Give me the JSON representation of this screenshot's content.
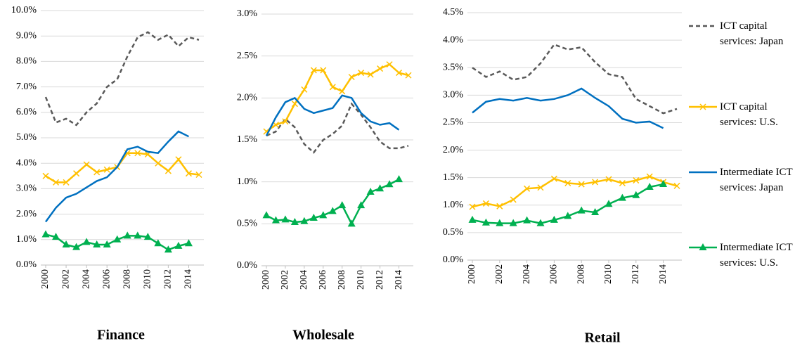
{
  "chart_data": [
    {
      "type": "line",
      "title": "Finance",
      "x": [
        2000,
        2001,
        2002,
        2003,
        2004,
        2005,
        2006,
        2007,
        2008,
        2009,
        2010,
        2011,
        2012,
        2013,
        2014,
        2015
      ],
      "xlim": [
        2000,
        2015
      ],
      "xticks": [
        2000,
        2002,
        2004,
        2006,
        2008,
        2010,
        2012,
        2014
      ],
      "ylim": [
        0,
        10
      ],
      "yticks": [
        {
          "value": 0,
          "label": "0.0%"
        },
        {
          "value": 1,
          "label": "1.0%"
        },
        {
          "value": 2,
          "label": "2.0%"
        },
        {
          "value": 3,
          "label": "3.0%"
        },
        {
          "value": 4,
          "label": "4.0%"
        },
        {
          "value": 5,
          "label": "5.0%"
        },
        {
          "value": 6,
          "label": "6.0%"
        },
        {
          "value": 7,
          "label": "7.0%"
        },
        {
          "value": 8,
          "label": "8.0%"
        },
        {
          "value": 9,
          "label": "9.0%"
        },
        {
          "value": 10,
          "label": "10.0%"
        }
      ],
      "grid": true,
      "series": [
        {
          "color": "#595959",
          "style": "dashed",
          "marker": "none",
          "values": [
            6.6,
            5.6,
            5.75,
            5.5,
            6.0,
            6.35,
            7.0,
            7.3,
            8.2,
            8.95,
            9.15,
            8.85,
            9.05,
            8.6,
            8.95,
            8.85
          ]
        },
        {
          "color": "#ffc000",
          "style": "solid",
          "marker": "x",
          "values": [
            3.5,
            3.25,
            3.25,
            3.6,
            3.95,
            3.65,
            3.75,
            3.85,
            4.4,
            4.4,
            4.35,
            4.0,
            3.7,
            4.15,
            3.6,
            3.55
          ]
        },
        {
          "color": "#0070c0",
          "style": "solid",
          "marker": "none",
          "values": [
            1.7,
            2.25,
            2.65,
            2.8,
            3.05,
            3.3,
            3.45,
            3.85,
            4.55,
            4.65,
            4.45,
            4.4,
            4.85,
            5.25,
            5.05,
            null
          ]
        },
        {
          "color": "#00b050",
          "style": "solid",
          "marker": "triangle",
          "values": [
            1.2,
            1.1,
            0.8,
            0.7,
            0.9,
            0.8,
            0.8,
            1.0,
            1.15,
            1.15,
            1.1,
            0.85,
            0.6,
            0.75,
            0.85,
            null
          ]
        }
      ]
    },
    {
      "type": "line",
      "title": "Wholesale",
      "x": [
        2000,
        2001,
        2002,
        2003,
        2004,
        2005,
        2006,
        2007,
        2008,
        2009,
        2010,
        2011,
        2012,
        2013,
        2014,
        2015
      ],
      "xlim": [
        2000,
        2015
      ],
      "xticks": [
        2000,
        2002,
        2004,
        2006,
        2008,
        2010,
        2012,
        2014
      ],
      "ylim": [
        0,
        3
      ],
      "yticks": [
        {
          "value": 0,
          "label": "0.0%"
        },
        {
          "value": 0.5,
          "label": "0.5%"
        },
        {
          "value": 1,
          "label": "1.0%"
        },
        {
          "value": 1.5,
          "label": "1.5%"
        },
        {
          "value": 2,
          "label": "2.0%"
        },
        {
          "value": 2.5,
          "label": "2.5%"
        },
        {
          "value": 3,
          "label": "3.0%"
        }
      ],
      "grid": true,
      "series": [
        {
          "color": "#595959",
          "style": "dashed",
          "marker": "none",
          "values": [
            1.55,
            1.6,
            1.75,
            1.65,
            1.45,
            1.35,
            1.5,
            1.57,
            1.67,
            1.93,
            1.8,
            1.65,
            1.48,
            1.4,
            1.4,
            1.43
          ]
        },
        {
          "color": "#ffc000",
          "style": "solid",
          "marker": "x",
          "values": [
            1.6,
            1.68,
            1.72,
            1.93,
            2.1,
            2.33,
            2.33,
            2.13,
            2.08,
            2.25,
            2.3,
            2.28,
            2.35,
            2.4,
            2.3,
            2.27
          ]
        },
        {
          "color": "#0070c0",
          "style": "solid",
          "marker": "none",
          "values": [
            1.55,
            1.77,
            1.95,
            2.0,
            1.87,
            1.82,
            1.85,
            1.88,
            2.03,
            2.0,
            1.82,
            1.72,
            1.68,
            1.7,
            1.62,
            null
          ]
        },
        {
          "color": "#00b050",
          "style": "solid",
          "marker": "triangle",
          "values": [
            0.6,
            0.54,
            0.55,
            0.52,
            0.53,
            0.57,
            0.6,
            0.65,
            0.72,
            0.5,
            0.72,
            0.88,
            0.92,
            0.97,
            1.03,
            null
          ]
        }
      ]
    },
    {
      "type": "line",
      "title": "Retail",
      "x": [
        2000,
        2001,
        2002,
        2003,
        2004,
        2005,
        2006,
        2007,
        2008,
        2009,
        2010,
        2011,
        2012,
        2013,
        2014,
        2015
      ],
      "xlim": [
        2000,
        2015
      ],
      "xticks": [
        2000,
        2002,
        2004,
        2006,
        2008,
        2010,
        2012,
        2014
      ],
      "ylim": [
        0,
        4.5
      ],
      "yticks": [
        {
          "value": 0,
          "label": "0.0%"
        },
        {
          "value": 0.5,
          "label": "0.5%"
        },
        {
          "value": 1,
          "label": "1.0%"
        },
        {
          "value": 1.5,
          "label": "1.5%"
        },
        {
          "value": 2,
          "label": "2.0%"
        },
        {
          "value": 2.5,
          "label": "2.5%"
        },
        {
          "value": 3,
          "label": "3.0%"
        },
        {
          "value": 3.5,
          "label": "3.5%"
        },
        {
          "value": 4,
          "label": "4.0%"
        },
        {
          "value": 4.5,
          "label": "4.5%"
        }
      ],
      "grid": true,
      "legend": "right",
      "series": [
        {
          "name": "ICT capital services: Japan",
          "color": "#595959",
          "style": "dashed",
          "marker": "none",
          "values": [
            3.5,
            3.33,
            3.43,
            3.28,
            3.33,
            3.58,
            3.92,
            3.83,
            3.87,
            3.6,
            3.38,
            3.33,
            2.93,
            2.8,
            2.67,
            2.75
          ]
        },
        {
          "name": "ICT capital services: U.S.",
          "color": "#ffc000",
          "style": "solid",
          "marker": "x",
          "values": [
            0.97,
            1.03,
            0.98,
            1.1,
            1.3,
            1.32,
            1.48,
            1.4,
            1.38,
            1.42,
            1.47,
            1.4,
            1.45,
            1.52,
            1.42,
            1.35
          ]
        },
        {
          "name": "Intermediate ICT services: Japan",
          "color": "#0070c0",
          "style": "solid",
          "marker": "none",
          "values": [
            2.68,
            2.88,
            2.93,
            2.9,
            2.95,
            2.9,
            2.93,
            3.0,
            3.12,
            2.95,
            2.8,
            2.57,
            2.5,
            2.52,
            2.4,
            null
          ]
        },
        {
          "name": "Intermediate ICT services: U.S.",
          "color": "#00b050",
          "style": "solid",
          "marker": "triangle",
          "values": [
            0.73,
            0.68,
            0.67,
            0.67,
            0.72,
            0.67,
            0.73,
            0.8,
            0.9,
            0.87,
            1.02,
            1.13,
            1.18,
            1.33,
            1.38,
            null
          ]
        }
      ]
    }
  ]
}
